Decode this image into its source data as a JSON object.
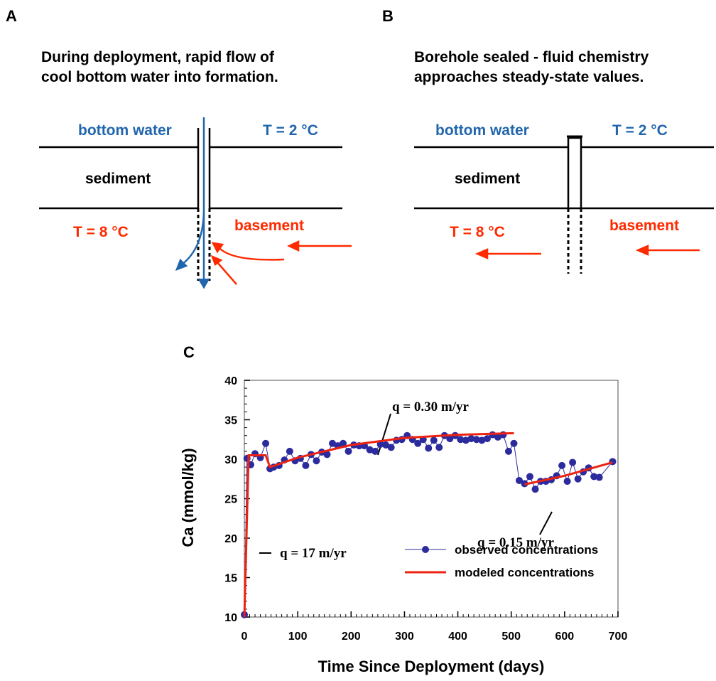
{
  "panel_a": {
    "label": "A",
    "caption": [
      "During deployment, rapid flow of",
      "cool bottom water into formation."
    ],
    "bottom_water": "bottom water",
    "top_temp": "T = 2 °C",
    "sediment": "sediment",
    "bottom_temp": "T = 8 °C",
    "basement": "basement"
  },
  "panel_b": {
    "label": "B",
    "caption": [
      "Borehole sealed - fluid chemistry",
      "approaches steady-state values."
    ],
    "bottom_water": "bottom water",
    "top_temp": "T = 2 °C",
    "sediment": "sediment",
    "bottom_temp": "T = 8 °C",
    "basement": "basement"
  },
  "chart_data": {
    "type": "line",
    "panel_label": "C",
    "x_label": "Time Since Deployment (days)",
    "y_label": "Ca (mmol/kg)",
    "xlim": [
      0,
      700
    ],
    "ylim": [
      10,
      40
    ],
    "xticks": [
      0,
      100,
      200,
      300,
      400,
      500,
      600,
      700
    ],
    "yticks": [
      10,
      15,
      20,
      25,
      30,
      35,
      40
    ],
    "annotations": [
      "q = 17 m/yr",
      "q = 0.30 m/yr",
      "q = 0.15 m/yr"
    ],
    "series": [
      {
        "name": "observed concentrations",
        "color": "#2b2b9e",
        "marker": true,
        "x": [
          0,
          5,
          12,
          20,
          30,
          40,
          48,
          55,
          65,
          75,
          85,
          95,
          105,
          115,
          125,
          135,
          145,
          155,
          165,
          175,
          185,
          195,
          205,
          215,
          225,
          235,
          245,
          255,
          265,
          275,
          285,
          295,
          305,
          315,
          325,
          335,
          345,
          355,
          365,
          375,
          385,
          395,
          405,
          415,
          425,
          435,
          445,
          455,
          465,
          475,
          485,
          495,
          505,
          515,
          525,
          535,
          545,
          555,
          565,
          575,
          585,
          595,
          605,
          615,
          625,
          635,
          645,
          655,
          665,
          690
        ],
        "values": [
          10.3,
          30.1,
          29.3,
          30.7,
          30.2,
          32,
          28.8,
          29.0,
          29.2,
          29.9,
          31.0,
          29.8,
          30.1,
          29.2,
          30.6,
          29.8,
          30.9,
          30.6,
          32.0,
          31.7,
          32.0,
          31.0,
          31.8,
          31.7,
          31.7,
          31.2,
          31.0,
          31.9,
          31.8,
          31.5,
          32.4,
          32.5,
          33.0,
          32.5,
          32.0,
          32.5,
          31.4,
          32.4,
          31.5,
          33.0,
          32.6,
          33.0,
          32.5,
          32.4,
          32.6,
          32.5,
          32.4,
          32.6,
          33.1,
          32.8,
          33.1,
          31.0,
          32.0,
          27.3,
          26.9,
          27.8,
          26.2,
          27.2,
          27.2,
          27.4,
          27.9,
          29.2,
          27.2,
          29.6,
          27.5,
          28.4,
          28.9,
          27.8,
          27.7,
          29.7
        ]
      },
      {
        "name": "modeled concentrations",
        "color": "#ee2211",
        "marker": false,
        "x": [
          0,
          8,
          40,
          48,
          100,
          200,
          300,
          400,
          505,
          515,
          525,
          600,
          690
        ],
        "values": [
          10,
          30.5,
          30.5,
          29.0,
          30.2,
          31.8,
          32.7,
          33.1,
          33.3,
          null,
          26.8,
          27.9,
          29.6
        ]
      }
    ]
  }
}
